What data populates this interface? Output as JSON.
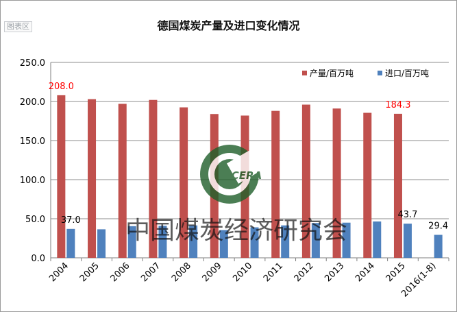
{
  "chart_area_tag": "图表区",
  "watermark_text": "中国煤炭经济研究会",
  "watermark_logo_text": "CERA",
  "colors": {
    "production": "#c0504d",
    "imports": "#4f81bd",
    "highlight_label": "#ff0000",
    "watermark": "#1f5f2a"
  },
  "chart_data": {
    "type": "bar",
    "title": "德国煤炭产量及进口变化情况",
    "xlabel": "",
    "ylabel": "",
    "categories": [
      "2004",
      "2005",
      "2006",
      "2007",
      "2008",
      "2009",
      "2010",
      "2011",
      "2012",
      "2013",
      "2014",
      "2015",
      "2016(1-8)"
    ],
    "ylim": [
      0,
      250
    ],
    "yticks": [
      "0.0",
      "50.0",
      "100.0",
      "150.0",
      "200.0",
      "250.0"
    ],
    "grid": true,
    "legend_position": "top-right",
    "series": [
      {
        "name": "产量/百万吨",
        "values": [
          208.0,
          203.0,
          197.0,
          202.0,
          192.5,
          184.0,
          182.0,
          188.0,
          196.0,
          191.0,
          185.5,
          184.3,
          null
        ]
      },
      {
        "name": "进口/百万吨",
        "values": [
          37.0,
          36.5,
          40.5,
          41.0,
          41.5,
          35.5,
          39.0,
          41.5,
          44.5,
          45.0,
          46.5,
          43.7,
          29.4
        ]
      }
    ],
    "data_labels": [
      {
        "series": 0,
        "category": "2004",
        "text": "208.0",
        "color": "red"
      },
      {
        "series": 1,
        "category": "2004",
        "text": "37.0",
        "color": "black"
      },
      {
        "series": 0,
        "category": "2015",
        "text": "184.3",
        "color": "red"
      },
      {
        "series": 1,
        "category": "2015",
        "text": "43.7",
        "color": "black"
      },
      {
        "series": 1,
        "category": "2016(1-8)",
        "text": "29.4",
        "color": "black"
      }
    ]
  }
}
